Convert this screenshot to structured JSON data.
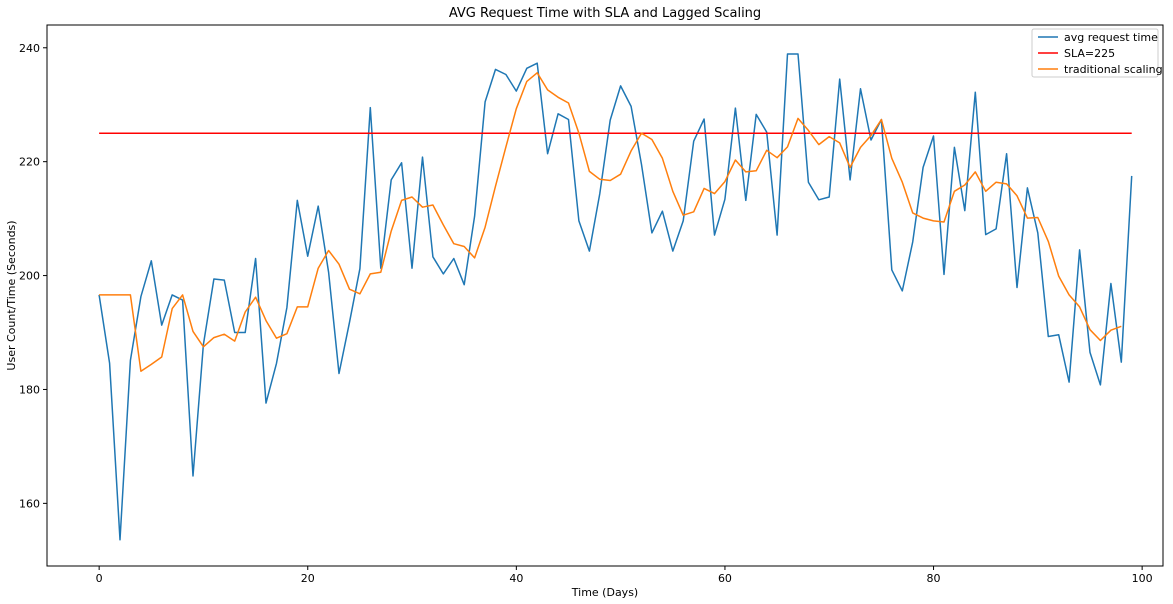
{
  "chart_data": {
    "type": "line",
    "title": "AVG Request Time with SLA and Lagged Scaling",
    "xlabel": "Time (Days)",
    "ylabel": "User Count/Time (Seconds)",
    "xlim": [
      -5,
      102
    ],
    "ylim": [
      149,
      244
    ],
    "xticks": [
      0,
      20,
      40,
      60,
      80,
      100
    ],
    "yticks": [
      160,
      180,
      200,
      220,
      240
    ],
    "grid": false,
    "legend_position": "top-right",
    "series": [
      {
        "name": "avg request time",
        "color": "#1f77b4",
        "x": [
          0,
          1,
          2,
          3,
          4,
          5,
          6,
          7,
          8,
          9,
          10,
          11,
          12,
          13,
          14,
          15,
          16,
          17,
          18,
          19,
          20,
          21,
          22,
          23,
          24,
          25,
          26,
          27,
          28,
          29,
          30,
          31,
          32,
          33,
          34,
          35,
          36,
          37,
          38,
          39,
          40,
          41,
          42,
          43,
          44,
          45,
          46,
          47,
          48,
          49,
          50,
          51,
          52,
          53,
          54,
          55,
          56,
          57,
          58,
          59,
          60,
          61,
          62,
          63,
          64,
          65,
          66,
          67,
          68,
          69,
          70,
          71,
          72,
          73,
          74,
          75,
          76,
          77,
          78,
          79,
          80,
          81,
          82,
          83,
          84,
          85,
          86,
          87,
          88,
          89,
          90,
          91,
          92,
          93,
          94,
          95,
          96,
          97,
          98,
          99
        ],
        "values": [
          196.6,
          184.6,
          153.6,
          185.1,
          196.3,
          202.6,
          191.3,
          196.6,
          195.7,
          164.8,
          187.9,
          199.4,
          199.2,
          190.0,
          190.0,
          203.0,
          177.6,
          184.6,
          194.4,
          213.2,
          203.4,
          212.2,
          200.6,
          182.8,
          191.8,
          201.2,
          229.5,
          201.3,
          216.8,
          219.8,
          201.3,
          220.8,
          203.3,
          200.3,
          203.0,
          198.4,
          210.4,
          230.5,
          236.2,
          235.3,
          232.4,
          236.4,
          237.3,
          221.4,
          228.4,
          227.4,
          209.6,
          204.3,
          214.4,
          227.3,
          233.3,
          229.7,
          219.5,
          207.5,
          211.3,
          204.3,
          209.6,
          223.6,
          227.5,
          207.1,
          213.4,
          229.4,
          213.2,
          228.3,
          225.2,
          207.1,
          238.9,
          238.9,
          216.4,
          213.3,
          213.8,
          234.5,
          216.8,
          232.8,
          223.8,
          227.4,
          201.0,
          197.3,
          205.9,
          219.0,
          224.5,
          200.2,
          222.5,
          211.4,
          232.2,
          207.2,
          208.2,
          221.4,
          197.9,
          215.4,
          207.5,
          189.3,
          189.6,
          181.3,
          204.5,
          186.5,
          180.8,
          198.6,
          184.8,
          217.5
        ]
      },
      {
        "name": "SLA=225",
        "color": "#ff0000",
        "x": [
          0,
          99
        ],
        "values": [
          225,
          225
        ]
      },
      {
        "name": "traditional scaling",
        "color": "#ff7f0e",
        "x": [
          0,
          1,
          2,
          3,
          4,
          5,
          6,
          7,
          8,
          9,
          10,
          11,
          12,
          13,
          14,
          15,
          16,
          17,
          18,
          19,
          20,
          21,
          22,
          23,
          24,
          25,
          26,
          27,
          28,
          29,
          30,
          31,
          32,
          33,
          34,
          35,
          36,
          37,
          38,
          39,
          40,
          41,
          42,
          43,
          44,
          45,
          46,
          47,
          48,
          49,
          50,
          51,
          52,
          53,
          54,
          55,
          56,
          57,
          58,
          59,
          60,
          61,
          62,
          63,
          64,
          65,
          66,
          67,
          68,
          69,
          70,
          71,
          72,
          73,
          74,
          75,
          76,
          77,
          78,
          79,
          80,
          81,
          82,
          83,
          84,
          85,
          86,
          87,
          88,
          89,
          90,
          91,
          92,
          93,
          94,
          95,
          96,
          97,
          98
        ],
        "values": [
          196.6,
          196.6,
          196.6,
          196.6,
          183.2,
          184.4,
          185.7,
          194.2,
          196.6,
          190.2,
          187.5,
          189.1,
          189.7,
          188.5,
          193.6,
          196.2,
          192.1,
          189.0,
          189.8,
          194.5,
          194.5,
          201.3,
          204.4,
          202.0,
          197.6,
          196.8,
          200.3,
          200.6,
          207.8,
          213.2,
          213.8,
          212.0,
          212.4,
          208.9,
          205.6,
          205.1,
          203.1,
          208.5,
          215.7,
          222.6,
          229.3,
          234.1,
          235.6,
          232.6,
          231.3,
          230.3,
          225.0,
          218.3,
          216.9,
          216.7,
          217.8,
          221.9,
          225.0,
          223.9,
          220.6,
          214.8,
          210.6,
          211.2,
          215.3,
          214.4,
          216.5,
          220.3,
          218.2,
          218.4,
          222.0,
          220.7,
          222.6,
          227.6,
          225.5,
          223.0,
          224.4,
          223.3,
          219.0,
          222.5,
          224.6,
          227.4,
          220.6,
          216.4,
          211.0,
          210.1,
          209.6,
          209.4,
          214.8,
          215.9,
          218.2,
          214.8,
          216.4,
          216.1,
          214.0,
          210.1,
          210.2,
          206.0,
          199.9,
          196.6,
          194.5,
          190.5,
          188.6,
          190.4,
          191.1
        ]
      }
    ]
  }
}
